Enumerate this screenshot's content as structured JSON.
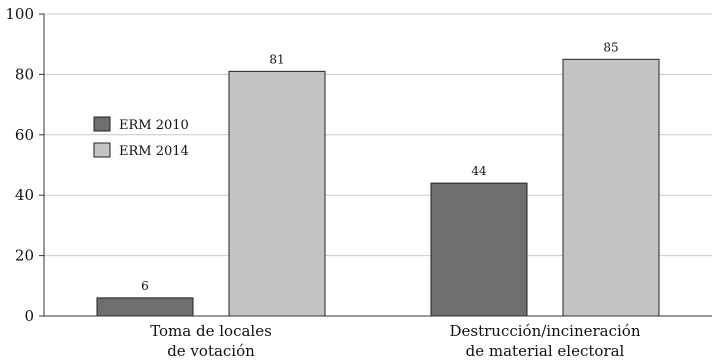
{
  "chart_data": {
    "type": "bar",
    "categories": [
      "Toma de locales\nde votación",
      "Destrucción/incineración\nde material electoral"
    ],
    "series": [
      {
        "name": "ERM 2010",
        "values": [
          6,
          44
        ],
        "color": "#6e6e6e"
      },
      {
        "name": "ERM 2014",
        "values": [
          81,
          85
        ],
        "color": "#c4c4c4"
      }
    ],
    "yticks": [
      0,
      20,
      40,
      60,
      80,
      100
    ],
    "ylim": [
      0,
      100
    ],
    "grid": true,
    "legend": "left"
  }
}
